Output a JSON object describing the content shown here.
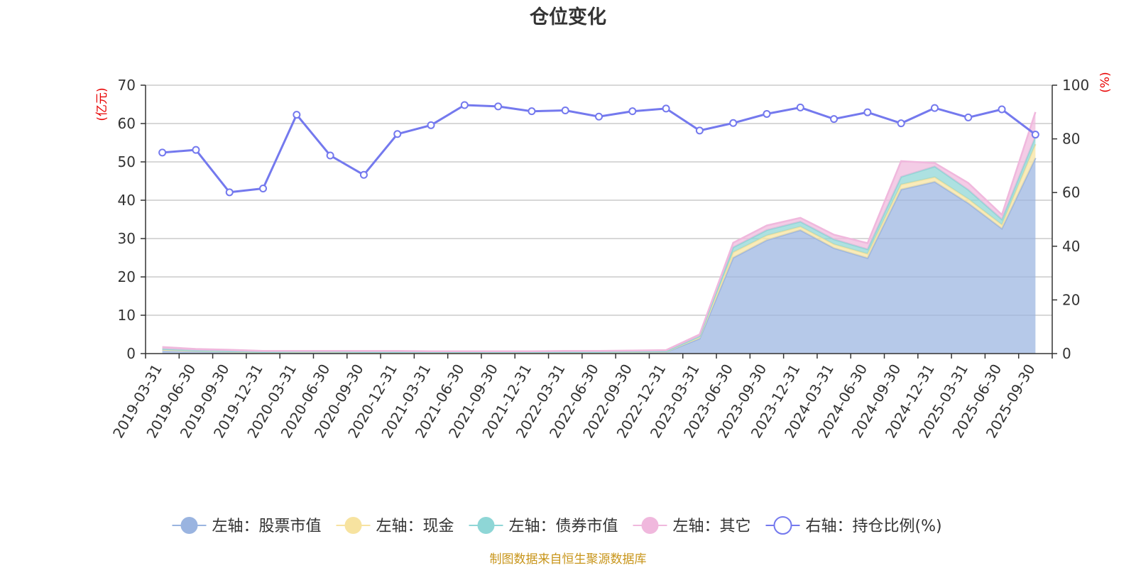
{
  "chart_data": {
    "type": "area",
    "title": "仓位变化",
    "left_axis_unit": "(亿元)",
    "right_axis_unit": "(%)",
    "ylim_left": [
      0,
      70
    ],
    "ylim_right": [
      0,
      100
    ],
    "yticks_left": [
      0,
      10,
      20,
      30,
      40,
      50,
      60,
      70
    ],
    "yticks_right": [
      0,
      20,
      40,
      60,
      80,
      100
    ],
    "categories": [
      "2019-03-31",
      "2019-06-30",
      "2019-09-30",
      "2019-12-31",
      "2020-03-31",
      "2020-06-30",
      "2020-09-30",
      "2020-12-31",
      "2021-03-31",
      "2021-06-30",
      "2021-09-30",
      "2021-12-31",
      "2022-03-31",
      "2022-06-30",
      "2022-09-30",
      "2022-12-31",
      "2023-03-31",
      "2023-06-30",
      "2023-09-30",
      "2023-12-31",
      "2024-03-31",
      "2024-06-30",
      "2024-09-30",
      "2024-12-31",
      "2025-03-31",
      "2025-06-30",
      "2025-09-30"
    ],
    "series": [
      {
        "name": "左轴：股票市值",
        "axis": "left",
        "stack": true,
        "color": "#9ab4e0",
        "values": [
          0.9,
          0.6,
          0.4,
          0.2,
          0.3,
          0.3,
          0.2,
          0.2,
          0.2,
          0.2,
          0.2,
          0.2,
          0.2,
          0.2,
          0.3,
          0.4,
          3.9,
          25.0,
          29.6,
          32.2,
          27.5,
          24.9,
          42.8,
          44.8,
          39.2,
          32.6,
          51.0
        ]
      },
      {
        "name": "左轴：现金",
        "axis": "left",
        "stack": true,
        "color": "#f7e3a0",
        "values": [
          0.1,
          0.1,
          0.1,
          0.1,
          0.1,
          0.1,
          0.1,
          0.1,
          0.1,
          0.1,
          0.1,
          0.1,
          0.1,
          0.1,
          0.1,
          0.1,
          0.4,
          1.4,
          1.2,
          0.9,
          1.0,
          1.1,
          1.3,
          1.2,
          1.1,
          1.0,
          3.6
        ]
      },
      {
        "name": "左轴：债券市值",
        "axis": "left",
        "stack": true,
        "color": "#8ed6d6",
        "values": [
          0.2,
          0.1,
          0.1,
          0.1,
          0.1,
          0.1,
          0.1,
          0.1,
          0.1,
          0.1,
          0.1,
          0.1,
          0.1,
          0.1,
          0.1,
          0.1,
          0.2,
          1.3,
          1.4,
          1.3,
          1.3,
          1.2,
          2.0,
          2.8,
          2.4,
          1.4,
          2.0
        ]
      },
      {
        "name": "左轴：其它",
        "axis": "left",
        "stack": true,
        "color": "#f0b8dd",
        "values": [
          0.5,
          0.4,
          0.4,
          0.3,
          0.2,
          0.2,
          0.3,
          0.3,
          0.2,
          0.2,
          0.2,
          0.2,
          0.3,
          0.3,
          0.3,
          0.3,
          0.5,
          1.2,
          1.2,
          1.0,
          1.2,
          1.6,
          4.1,
          0.9,
          1.8,
          1.2,
          6.4
        ]
      },
      {
        "name": "右轴：持仓比例(%)",
        "axis": "right",
        "type": "line",
        "color": "#7479ee",
        "values": [
          74.9,
          75.9,
          60.1,
          61.5,
          89.0,
          73.8,
          66.6,
          81.8,
          85.1,
          92.6,
          92.1,
          90.3,
          90.6,
          88.3,
          90.3,
          91.3,
          83.1,
          85.9,
          89.3,
          91.7,
          87.4,
          89.9,
          85.8,
          91.5,
          88.0,
          91.0,
          81.6
        ]
      }
    ]
  },
  "source_note": "制图数据来自恒生聚源数据库"
}
